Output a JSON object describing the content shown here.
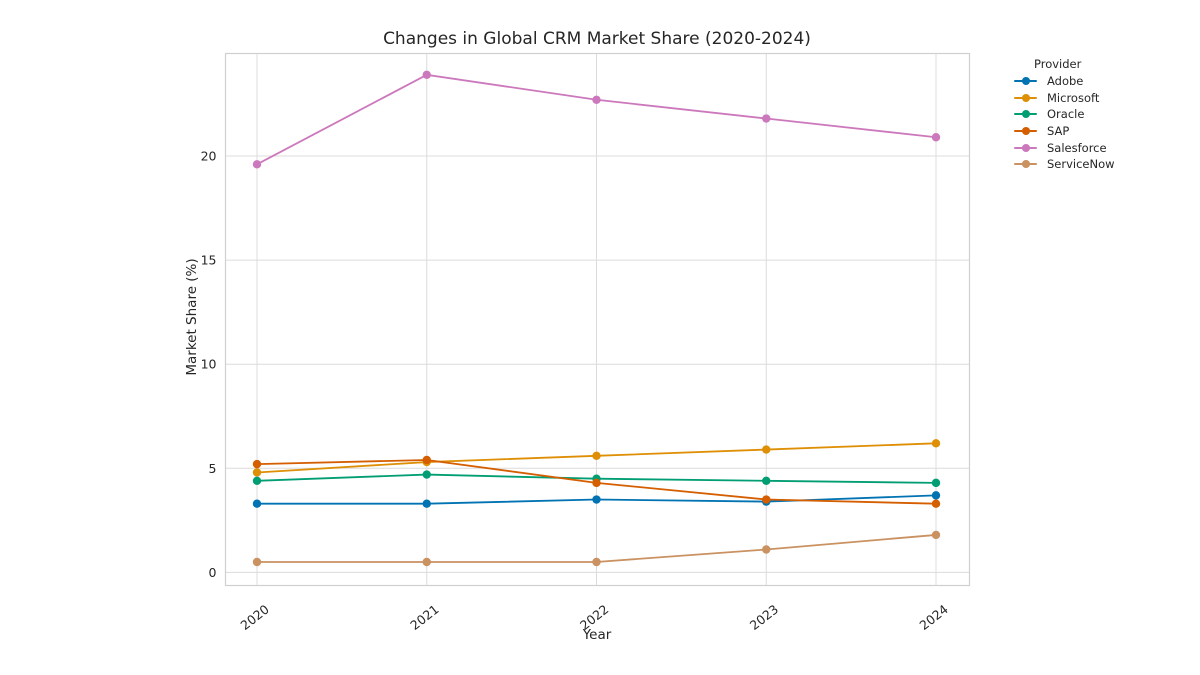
{
  "title": "Changes in Global CRM Market Share (2020-2024)",
  "x_axis": {
    "label": "Year",
    "ticks": [
      "2020",
      "2021",
      "2022",
      "2023",
      "2024"
    ]
  },
  "y_axis": {
    "label": "Market Share (%)",
    "ticks": [
      "0",
      "5",
      "10",
      "15",
      "20"
    ]
  },
  "legend": {
    "title": "Provider",
    "entries": [
      "Adobe",
      "Microsoft",
      "Oracle",
      "SAP",
      "Salesforce",
      "ServiceNow"
    ]
  },
  "colors": {
    "background": "#ffffff",
    "grid": "#dcdcdc",
    "spine": "#d0d0d0",
    "text": "#262626",
    "adobe": "#0173B2",
    "microsoft": "#DE8F05",
    "oracle": "#029E73",
    "sap": "#D55E00",
    "salesforce": "#CC78BC",
    "servicenow": "#CA9161"
  },
  "chart_data": {
    "type": "line",
    "title": "Changes in Global CRM Market Share (2020-2024)",
    "xlabel": "Year",
    "ylabel": "Market Share (%)",
    "categories": [
      "2020",
      "2021",
      "2022",
      "2023",
      "2024"
    ],
    "series": [
      {
        "name": "Adobe",
        "color": "#0173B2",
        "values": [
          3.3,
          3.3,
          3.5,
          3.4,
          3.7
        ]
      },
      {
        "name": "Microsoft",
        "color": "#DE8F05",
        "values": [
          4.8,
          5.3,
          5.6,
          5.9,
          6.2
        ]
      },
      {
        "name": "Oracle",
        "color": "#029E73",
        "values": [
          4.4,
          4.7,
          4.5,
          4.4,
          4.3
        ]
      },
      {
        "name": "SAP",
        "color": "#D55E00",
        "values": [
          5.2,
          5.4,
          4.3,
          3.5,
          3.3
        ]
      },
      {
        "name": "Salesforce",
        "color": "#CC78BC",
        "values": [
          19.6,
          23.9,
          22.7,
          21.8,
          20.9
        ]
      },
      {
        "name": "ServiceNow",
        "color": "#CA9161",
        "values": [
          0.5,
          0.5,
          0.5,
          1.1,
          1.8
        ]
      }
    ],
    "y_ticks": [
      0,
      5,
      10,
      15,
      20
    ],
    "ylim": [
      -0.6,
      25.0
    ],
    "grid": true,
    "marker": "circle",
    "legend_title": "Provider",
    "legend_position": "outside-upper-right"
  }
}
